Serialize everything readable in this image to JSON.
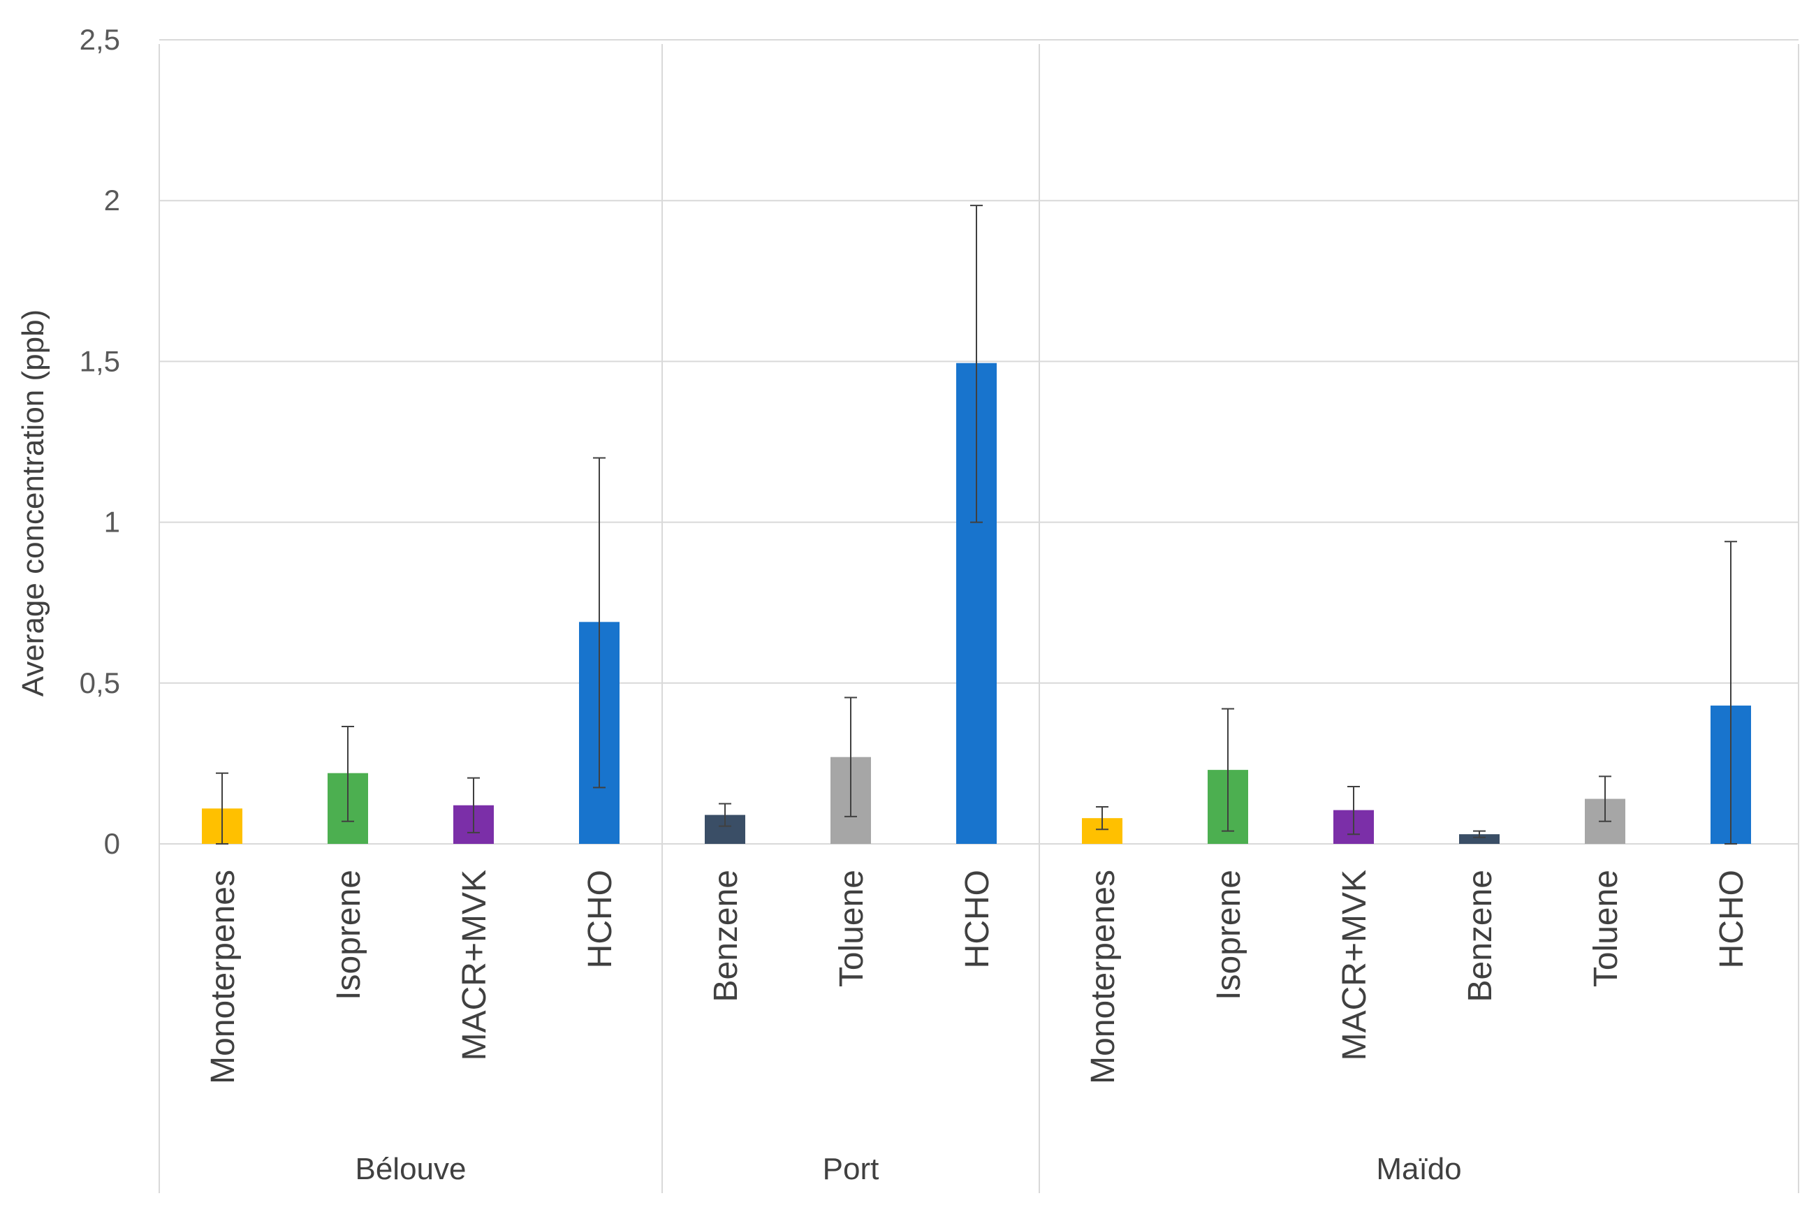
{
  "chart_data": {
    "type": "bar",
    "ylabel": "Average concentration (ppb)",
    "xlabel": "",
    "ylim": [
      0,
      2.5
    ],
    "yticks": [
      "0",
      "0,5",
      "1",
      "1,5",
      "2",
      "2,5"
    ],
    "ytick_values": [
      0,
      0.5,
      1,
      1.5,
      2,
      2.5
    ],
    "grid": true,
    "groups": [
      {
        "name": "Bélouve",
        "bars": [
          {
            "label": "Monoterpenes",
            "value": 0.11,
            "err_low": 0.0,
            "err_high": 0.22,
            "color": "#FFC000"
          },
          {
            "label": "Isoprene",
            "value": 0.22,
            "err_low": 0.07,
            "err_high": 0.365,
            "color": "#4CAF50"
          },
          {
            "label": "MACR+MVK",
            "value": 0.12,
            "err_low": 0.035,
            "err_high": 0.205,
            "color": "#7B2FA8"
          },
          {
            "label": "HCHO",
            "value": 0.69,
            "err_low": 0.175,
            "err_high": 1.2,
            "color": "#1874CD"
          }
        ]
      },
      {
        "name": "Port",
        "bars": [
          {
            "label": "Benzene",
            "value": 0.09,
            "err_low": 0.055,
            "err_high": 0.125,
            "color": "#3A4E66"
          },
          {
            "label": "Toluene",
            "value": 0.27,
            "err_low": 0.085,
            "err_high": 0.455,
            "color": "#A6A6A6"
          },
          {
            "label": "HCHO",
            "value": 1.495,
            "err_low": 1.0,
            "err_high": 1.985,
            "color": "#1874CD"
          }
        ]
      },
      {
        "name": "Maïdo",
        "bars": [
          {
            "label": "Monoterpenes",
            "value": 0.08,
            "err_low": 0.045,
            "err_high": 0.115,
            "color": "#FFC000"
          },
          {
            "label": "Isoprene",
            "value": 0.23,
            "err_low": 0.04,
            "err_high": 0.42,
            "color": "#4CAF50"
          },
          {
            "label": "MACR+MVK",
            "value": 0.105,
            "err_low": 0.03,
            "err_high": 0.178,
            "color": "#7B2FA8"
          },
          {
            "label": "Benzene",
            "value": 0.03,
            "err_low": 0.02,
            "err_high": 0.04,
            "color": "#3A4E66"
          },
          {
            "label": "Toluene",
            "value": 0.14,
            "err_low": 0.07,
            "err_high": 0.21,
            "color": "#A6A6A6"
          },
          {
            "label": "HCHO",
            "value": 0.43,
            "err_low": 0.0,
            "err_high": 0.94,
            "color": "#1874CD"
          }
        ]
      }
    ]
  }
}
